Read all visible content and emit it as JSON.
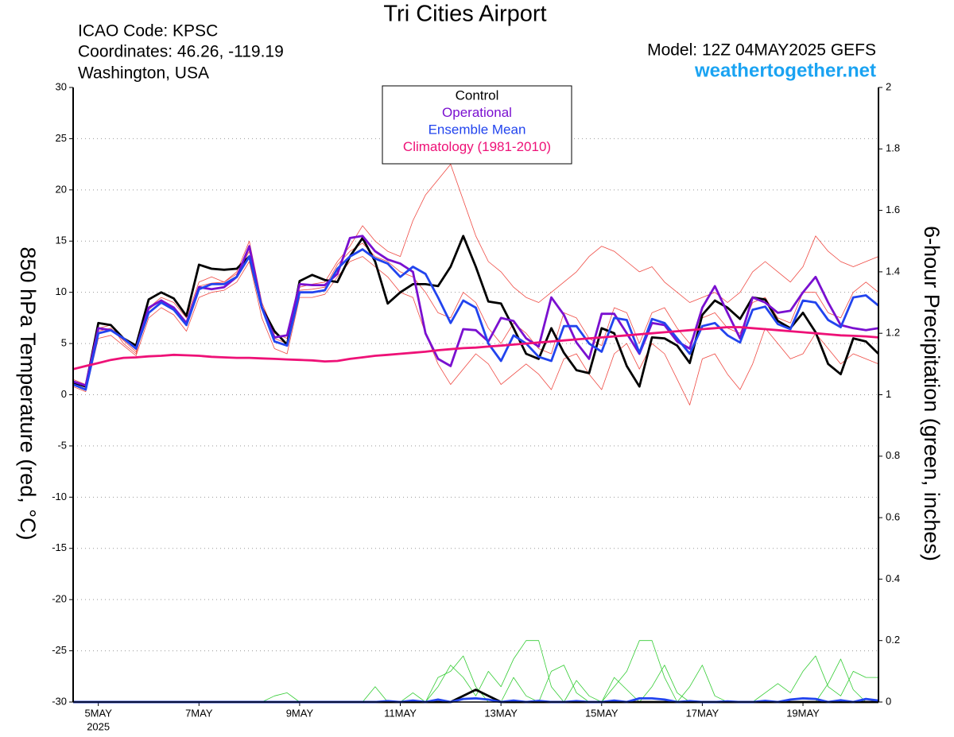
{
  "chart_data": {
    "type": "line",
    "title": "Tri Cities Airport",
    "info_left": [
      "ICAO Code: KPSC",
      "Coordinates: 46.26, -119.19",
      "Washington, USA"
    ],
    "model": "Model: 12Z 04MAY2025 GEFS",
    "source": "weathertogether.net",
    "ylabel": "850 hPa Temperature (red, °C)",
    "y2label": "6-hour Precipitation (green, inches)",
    "x_year_label": "2025",
    "xlim": [
      4.5,
      20.5
    ],
    "xticks": [
      {
        "value": 5,
        "label": "5MAY"
      },
      {
        "value": 7,
        "label": "7MAY"
      },
      {
        "value": 9,
        "label": "9MAY"
      },
      {
        "value": 11,
        "label": "11MAY"
      },
      {
        "value": 13,
        "label": "13MAY"
      },
      {
        "value": 15,
        "label": "15MAY"
      },
      {
        "value": 17,
        "label": "17MAY"
      },
      {
        "value": 19,
        "label": "19MAY"
      }
    ],
    "ylim": [
      -30,
      30
    ],
    "yticks": [
      -30,
      -25,
      -20,
      -15,
      -10,
      -5,
      0,
      5,
      10,
      15,
      20,
      25,
      30
    ],
    "y2lim": [
      0,
      2
    ],
    "y2ticks": [
      0,
      0.2,
      0.4,
      0.6,
      0.8,
      1,
      1.2,
      1.4,
      1.6,
      1.8,
      2
    ],
    "grid": true,
    "legend": "top-center",
    "x": [
      4.5,
      4.75,
      5,
      5.25,
      5.5,
      5.75,
      6,
      6.25,
      6.5,
      6.75,
      7,
      7.25,
      7.5,
      7.75,
      8,
      8.25,
      8.5,
      8.75,
      9,
      9.25,
      9.5,
      9.75,
      10,
      10.25,
      10.5,
      10.75,
      11,
      11.25,
      11.5,
      11.75,
      12,
      12.25,
      12.5,
      12.75,
      13,
      13.25,
      13.5,
      13.75,
      14,
      14.25,
      14.5,
      14.75,
      15,
      15.25,
      15.5,
      15.75,
      16,
      16.25,
      16.5,
      16.75,
      17,
      17.25,
      17.5,
      17.75,
      18,
      18.25,
      18.5,
      18.75,
      19,
      19.25,
      19.5,
      19.75,
      20,
      20.25,
      20.5
    ],
    "series": [
      {
        "color": "#ef4a43",
        "style": "thin",
        "values": [
          1.5,
          1,
          6.5,
          6.8,
          5,
          4,
          8.5,
          9.5,
          9,
          7.5,
          11,
          11.5,
          11,
          12,
          15,
          9,
          6,
          5.5,
          10.5,
          10.8,
          11,
          13,
          14.5,
          16.5,
          15,
          14,
          13.5,
          17,
          19.5,
          21,
          22.5,
          19,
          15.5,
          13,
          12,
          10.5,
          9.5,
          9,
          10,
          11,
          12,
          13.5,
          14.5,
          14,
          13,
          12,
          12.5,
          11,
          10,
          9,
          9.5,
          10,
          9,
          10,
          12,
          13,
          12,
          11,
          12.5,
          15.5,
          14,
          13,
          12.5,
          13,
          13.5
        ]
      },
      {
        "color": "#ef4a43",
        "style": "thin",
        "values": [
          0.8,
          0.3,
          5.5,
          5.8,
          4.8,
          3.8,
          7.5,
          8.5,
          7.8,
          6.2,
          9.5,
          10,
          10.2,
          11,
          13,
          7.5,
          4.5,
          4,
          9.5,
          9.5,
          9.8,
          11.5,
          13,
          13.5,
          12.5,
          11.5,
          10,
          9.5,
          6,
          3,
          1,
          2.5,
          4,
          3,
          1,
          2,
          3,
          2,
          0.5,
          3.5,
          4,
          2,
          0.5,
          4,
          5,
          2.5,
          5,
          4,
          1.5,
          -1,
          3.5,
          4,
          2,
          0.5,
          3,
          6.5,
          5,
          3.5,
          4,
          6,
          4.5,
          3,
          4,
          3.5,
          3
        ]
      },
      {
        "color": "#ef4a43",
        "style": "thin",
        "values": [
          1.2,
          0.7,
          6.2,
          6.5,
          5.3,
          4.2,
          8.3,
          9.3,
          8.5,
          7,
          10.6,
          10.9,
          11,
          11.8,
          14,
          8.8,
          5.5,
          5,
          10.2,
          10.3,
          10.5,
          12.7,
          14,
          14.8,
          13.5,
          13,
          12,
          11.5,
          10,
          8,
          7.5,
          10,
          9,
          6.5,
          5,
          7,
          6,
          4.5,
          4,
          8,
          7.5,
          5.5,
          4.8,
          8.5,
          8,
          5,
          8,
          8.5,
          6.5,
          5,
          7.5,
          8,
          6.5,
          6,
          9,
          9.5,
          7.5,
          7,
          10,
          10,
          8,
          7.5,
          10,
          11,
          10
        ]
      },
      {
        "color": "#33cc33",
        "style": "thin",
        "axis": "y2",
        "values": [
          0,
          0,
          0,
          0,
          0,
          0,
          0,
          0,
          0,
          0,
          0,
          0,
          0,
          0,
          0,
          0,
          0.02,
          0.03,
          0,
          0,
          0,
          0,
          0,
          0,
          0.05,
          0,
          0,
          0.03,
          0,
          0.08,
          0.1,
          0.15,
          0.05,
          0,
          0,
          0.08,
          0.02,
          0,
          0.1,
          0.12,
          0.03,
          0,
          0,
          0.05,
          0.1,
          0.2,
          0.2,
          0.08,
          0,
          0.05,
          0.12,
          0.02,
          0,
          0,
          0,
          0.03,
          0.06,
          0.03,
          0.1,
          0.15,
          0.05,
          0.02,
          0.1,
          0.08,
          0.08
        ]
      },
      {
        "color": "#33cc33",
        "style": "thin",
        "axis": "y2",
        "values": [
          0,
          0,
          0,
          0,
          0,
          0,
          0,
          0,
          0,
          0,
          0,
          0,
          0,
          0,
          0,
          0,
          0,
          0,
          0,
          0,
          0,
          0,
          0,
          0,
          0,
          0,
          0,
          0,
          0,
          0.05,
          0.12,
          0.08,
          0.02,
          0.1,
          0.05,
          0.14,
          0.2,
          0.2,
          0.05,
          0,
          0.07,
          0.02,
          0,
          0.08,
          0.04,
          0,
          0.05,
          0.12,
          0.03,
          0,
          0,
          0,
          0,
          0,
          0,
          0,
          0,
          0,
          0,
          0,
          0.06,
          0.14,
          0.04,
          0,
          0
        ]
      },
      {
        "color": "#000000",
        "style": "thick",
        "axis": "y2",
        "values": [
          0,
          0,
          0,
          0,
          0,
          0,
          0,
          0,
          0,
          0,
          0,
          0,
          0,
          0,
          0,
          0,
          0,
          0,
          0,
          0,
          0,
          0,
          0,
          0,
          0,
          0,
          0,
          0,
          0,
          0,
          0,
          0.02,
          0.04,
          0.02,
          0,
          0,
          0,
          0,
          0,
          0,
          0,
          0,
          0,
          0,
          0,
          0,
          0,
          0,
          0,
          0,
          0,
          0,
          0,
          0,
          0,
          0,
          0,
          0,
          0,
          0,
          0,
          0,
          0,
          0,
          0
        ]
      },
      {
        "color": "#2244ee",
        "style": "thick",
        "axis": "y2",
        "values": [
          0,
          0,
          0,
          0,
          0,
          0,
          0,
          0,
          0,
          0,
          0,
          0,
          0,
          0,
          0,
          0,
          0,
          0,
          0,
          0,
          0,
          0,
          0,
          0,
          0,
          0.003,
          0,
          0.005,
          0,
          0.008,
          0,
          0.01,
          0.012,
          0.008,
          0,
          0.005,
          0,
          0.004,
          0,
          0,
          0.003,
          0,
          0,
          0.005,
          0,
          0.012,
          0.012,
          0.008,
          0,
          0.003,
          0,
          0,
          0.002,
          0,
          0,
          0.004,
          0,
          0.008,
          0.012,
          0.01,
          0,
          0.006,
          0,
          0.01,
          0.005
        ]
      },
      {
        "name": "Control",
        "color": "#000000",
        "style": "thick",
        "values": [
          1.2,
          0.8,
          7,
          6.8,
          5.5,
          4.8,
          9.3,
          10,
          9.4,
          7.7,
          12.7,
          12.3,
          12.2,
          12.3,
          13.5,
          8.5,
          6.2,
          4.9,
          11.1,
          11.7,
          11.2,
          11,
          13.5,
          15.3,
          13,
          8.9,
          10,
          10.8,
          10.8,
          10.6,
          12.5,
          15.5,
          12.5,
          9.1,
          8.9,
          6.5,
          4,
          3.5,
          6.5,
          4.1,
          2.4,
          2.1,
          6.5,
          6,
          2.8,
          0.8,
          5.6,
          5.5,
          4.8,
          3.1,
          7.8,
          9.2,
          8.5,
          7.4,
          9.5,
          9.3,
          7.2,
          6.5,
          8,
          6.1,
          3,
          2,
          5.5,
          5.2,
          4
        ]
      },
      {
        "name": "Operational",
        "color": "#7a10d0",
        "style": "thick",
        "values": [
          1.3,
          0.9,
          6.5,
          6.3,
          5.5,
          4.5,
          8.5,
          9.2,
          8.5,
          7,
          10.5,
          10.3,
          10.5,
          11.5,
          14.5,
          8.5,
          5.6,
          5.8,
          10.8,
          10.7,
          10.7,
          11.8,
          15.3,
          15.5,
          14,
          13.2,
          12.8,
          12,
          6,
          3.5,
          2.8,
          6.4,
          6.3,
          5.2,
          7.5,
          7.2,
          5.5,
          4.7,
          9.5,
          7.8,
          5.1,
          3.5,
          7.9,
          7.9,
          6,
          4,
          7,
          6.8,
          5.2,
          4.5,
          8.5,
          10.6,
          8,
          5.5,
          9.5,
          9,
          8,
          8.2,
          10,
          11.5,
          9,
          6.8,
          6.5,
          6.3,
          6.5
        ]
      },
      {
        "name": "Ensemble Mean",
        "color": "#2244ee",
        "style": "thick",
        "values": [
          1,
          0.5,
          6,
          6.3,
          5.5,
          4.5,
          8,
          9,
          8.3,
          6.8,
          10.3,
          10.8,
          10.8,
          11.5,
          13.5,
          8.5,
          5.2,
          4.8,
          10,
          10,
          10.2,
          12.3,
          13.5,
          14.2,
          13.3,
          12.8,
          11.5,
          12.5,
          11.8,
          9.5,
          7,
          9.2,
          8.5,
          5,
          3.3,
          5.8,
          5,
          3.7,
          3.3,
          6.7,
          6.7,
          5,
          4.2,
          7.5,
          7.3,
          4.1,
          7.4,
          7,
          5.5,
          4,
          6.7,
          7,
          5.8,
          5.1,
          8.3,
          8.6,
          6.9,
          6.4,
          9.2,
          9,
          7.3,
          6.6,
          9.5,
          9.7,
          8.7
        ]
      },
      {
        "name": "Climatology (1981-2010)",
        "color": "#ee1177",
        "style": "thick",
        "values": [
          2.5,
          2.8,
          3.1,
          3.4,
          3.6,
          3.65,
          3.75,
          3.8,
          3.9,
          3.85,
          3.8,
          3.7,
          3.65,
          3.6,
          3.6,
          3.55,
          3.5,
          3.45,
          3.4,
          3.35,
          3.25,
          3.3,
          3.5,
          3.65,
          3.8,
          3.9,
          4,
          4.1,
          4.2,
          4.35,
          4.45,
          4.55,
          4.6,
          4.7,
          4.8,
          4.9,
          5,
          5.1,
          5.2,
          5.3,
          5.4,
          5.5,
          5.6,
          5.7,
          5.8,
          5.9,
          6,
          6.1,
          6.2,
          6.3,
          6.4,
          6.5,
          6.6,
          6.6,
          6.5,
          6.4,
          6.3,
          6.2,
          6.1,
          6,
          5.9,
          5.8,
          5.75,
          5.7,
          5.6
        ]
      }
    ]
  }
}
